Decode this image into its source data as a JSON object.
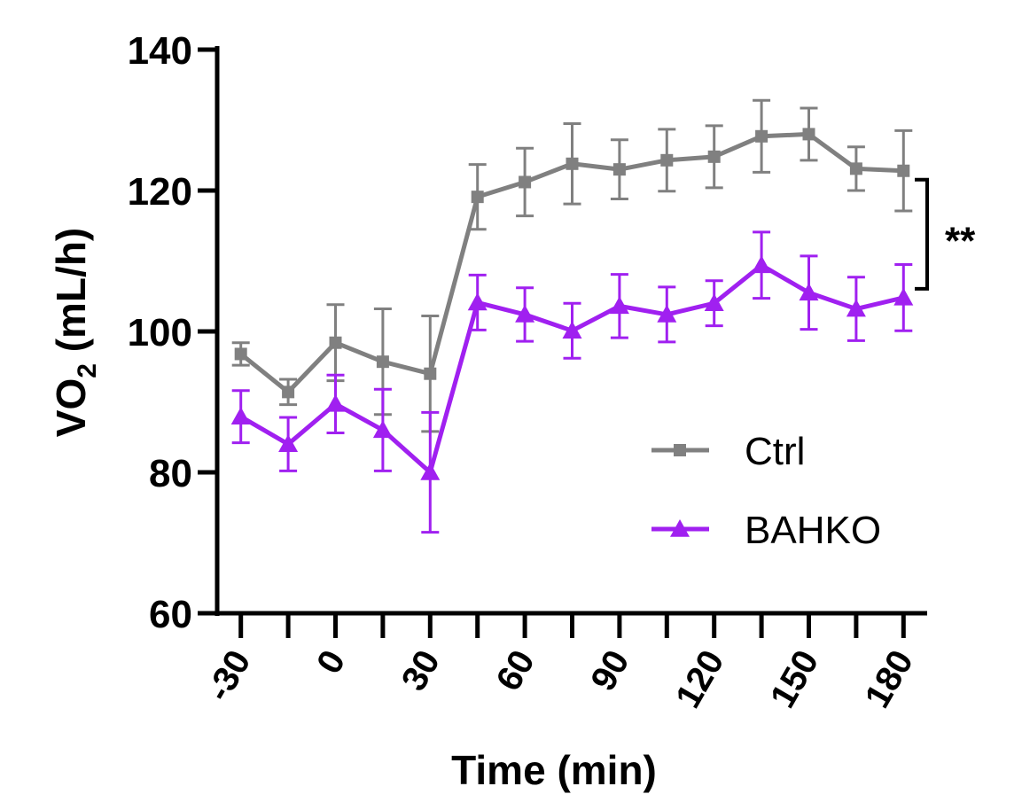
{
  "chart_data": {
    "type": "line",
    "title": "",
    "xlabel": "Time (min)",
    "ylabel": "VO2 (mL/h)",
    "ylabel_main": "VO",
    "ylabel_sub": "2",
    "ylabel_rest": " (mL/h)",
    "ylim": [
      60,
      140
    ],
    "yticks": [
      60,
      80,
      100,
      120,
      140
    ],
    "ytick_labels": [
      "60",
      "80",
      "100",
      "120",
      "140"
    ],
    "xlim": [
      -37.5,
      187.5
    ],
    "x": [
      -30,
      -15,
      0,
      15,
      30,
      45,
      60,
      75,
      90,
      105,
      120,
      135,
      150,
      165,
      180
    ],
    "xtick_labels": [
      "-30",
      "0",
      "30",
      "60",
      "90",
      "120",
      "150",
      "180"
    ],
    "xtick_label_values": [
      -30,
      0,
      30,
      60,
      90,
      120,
      150,
      180
    ],
    "series": [
      {
        "name": "Ctrl",
        "color": "#808080",
        "marker": "square",
        "values": [
          96.8,
          91.4,
          98.4,
          95.7,
          94.0,
          119.1,
          121.2,
          123.8,
          123.0,
          124.3,
          124.8,
          127.7,
          128.0,
          123.1,
          122.8
        ],
        "errors": [
          1.6,
          1.8,
          5.4,
          7.5,
          8.2,
          4.6,
          4.8,
          5.7,
          4.2,
          4.4,
          4.4,
          5.1,
          3.7,
          3.1,
          5.7
        ]
      },
      {
        "name": "BAHKO",
        "color": "#a020f0",
        "marker": "triangle",
        "values": [
          87.9,
          84.0,
          89.7,
          86.0,
          80.0,
          104.1,
          102.4,
          100.1,
          103.6,
          102.4,
          104.0,
          109.4,
          105.5,
          103.2,
          104.8
        ],
        "errors": [
          3.7,
          3.8,
          4.1,
          5.8,
          8.5,
          3.9,
          3.8,
          3.9,
          4.5,
          3.9,
          3.2,
          4.7,
          5.2,
          4.5,
          4.7
        ]
      }
    ],
    "legend_position": "bottom-right",
    "annotations": [
      {
        "text": "**",
        "between": [
          "Ctrl",
          "BAHKO"
        ]
      }
    ]
  }
}
